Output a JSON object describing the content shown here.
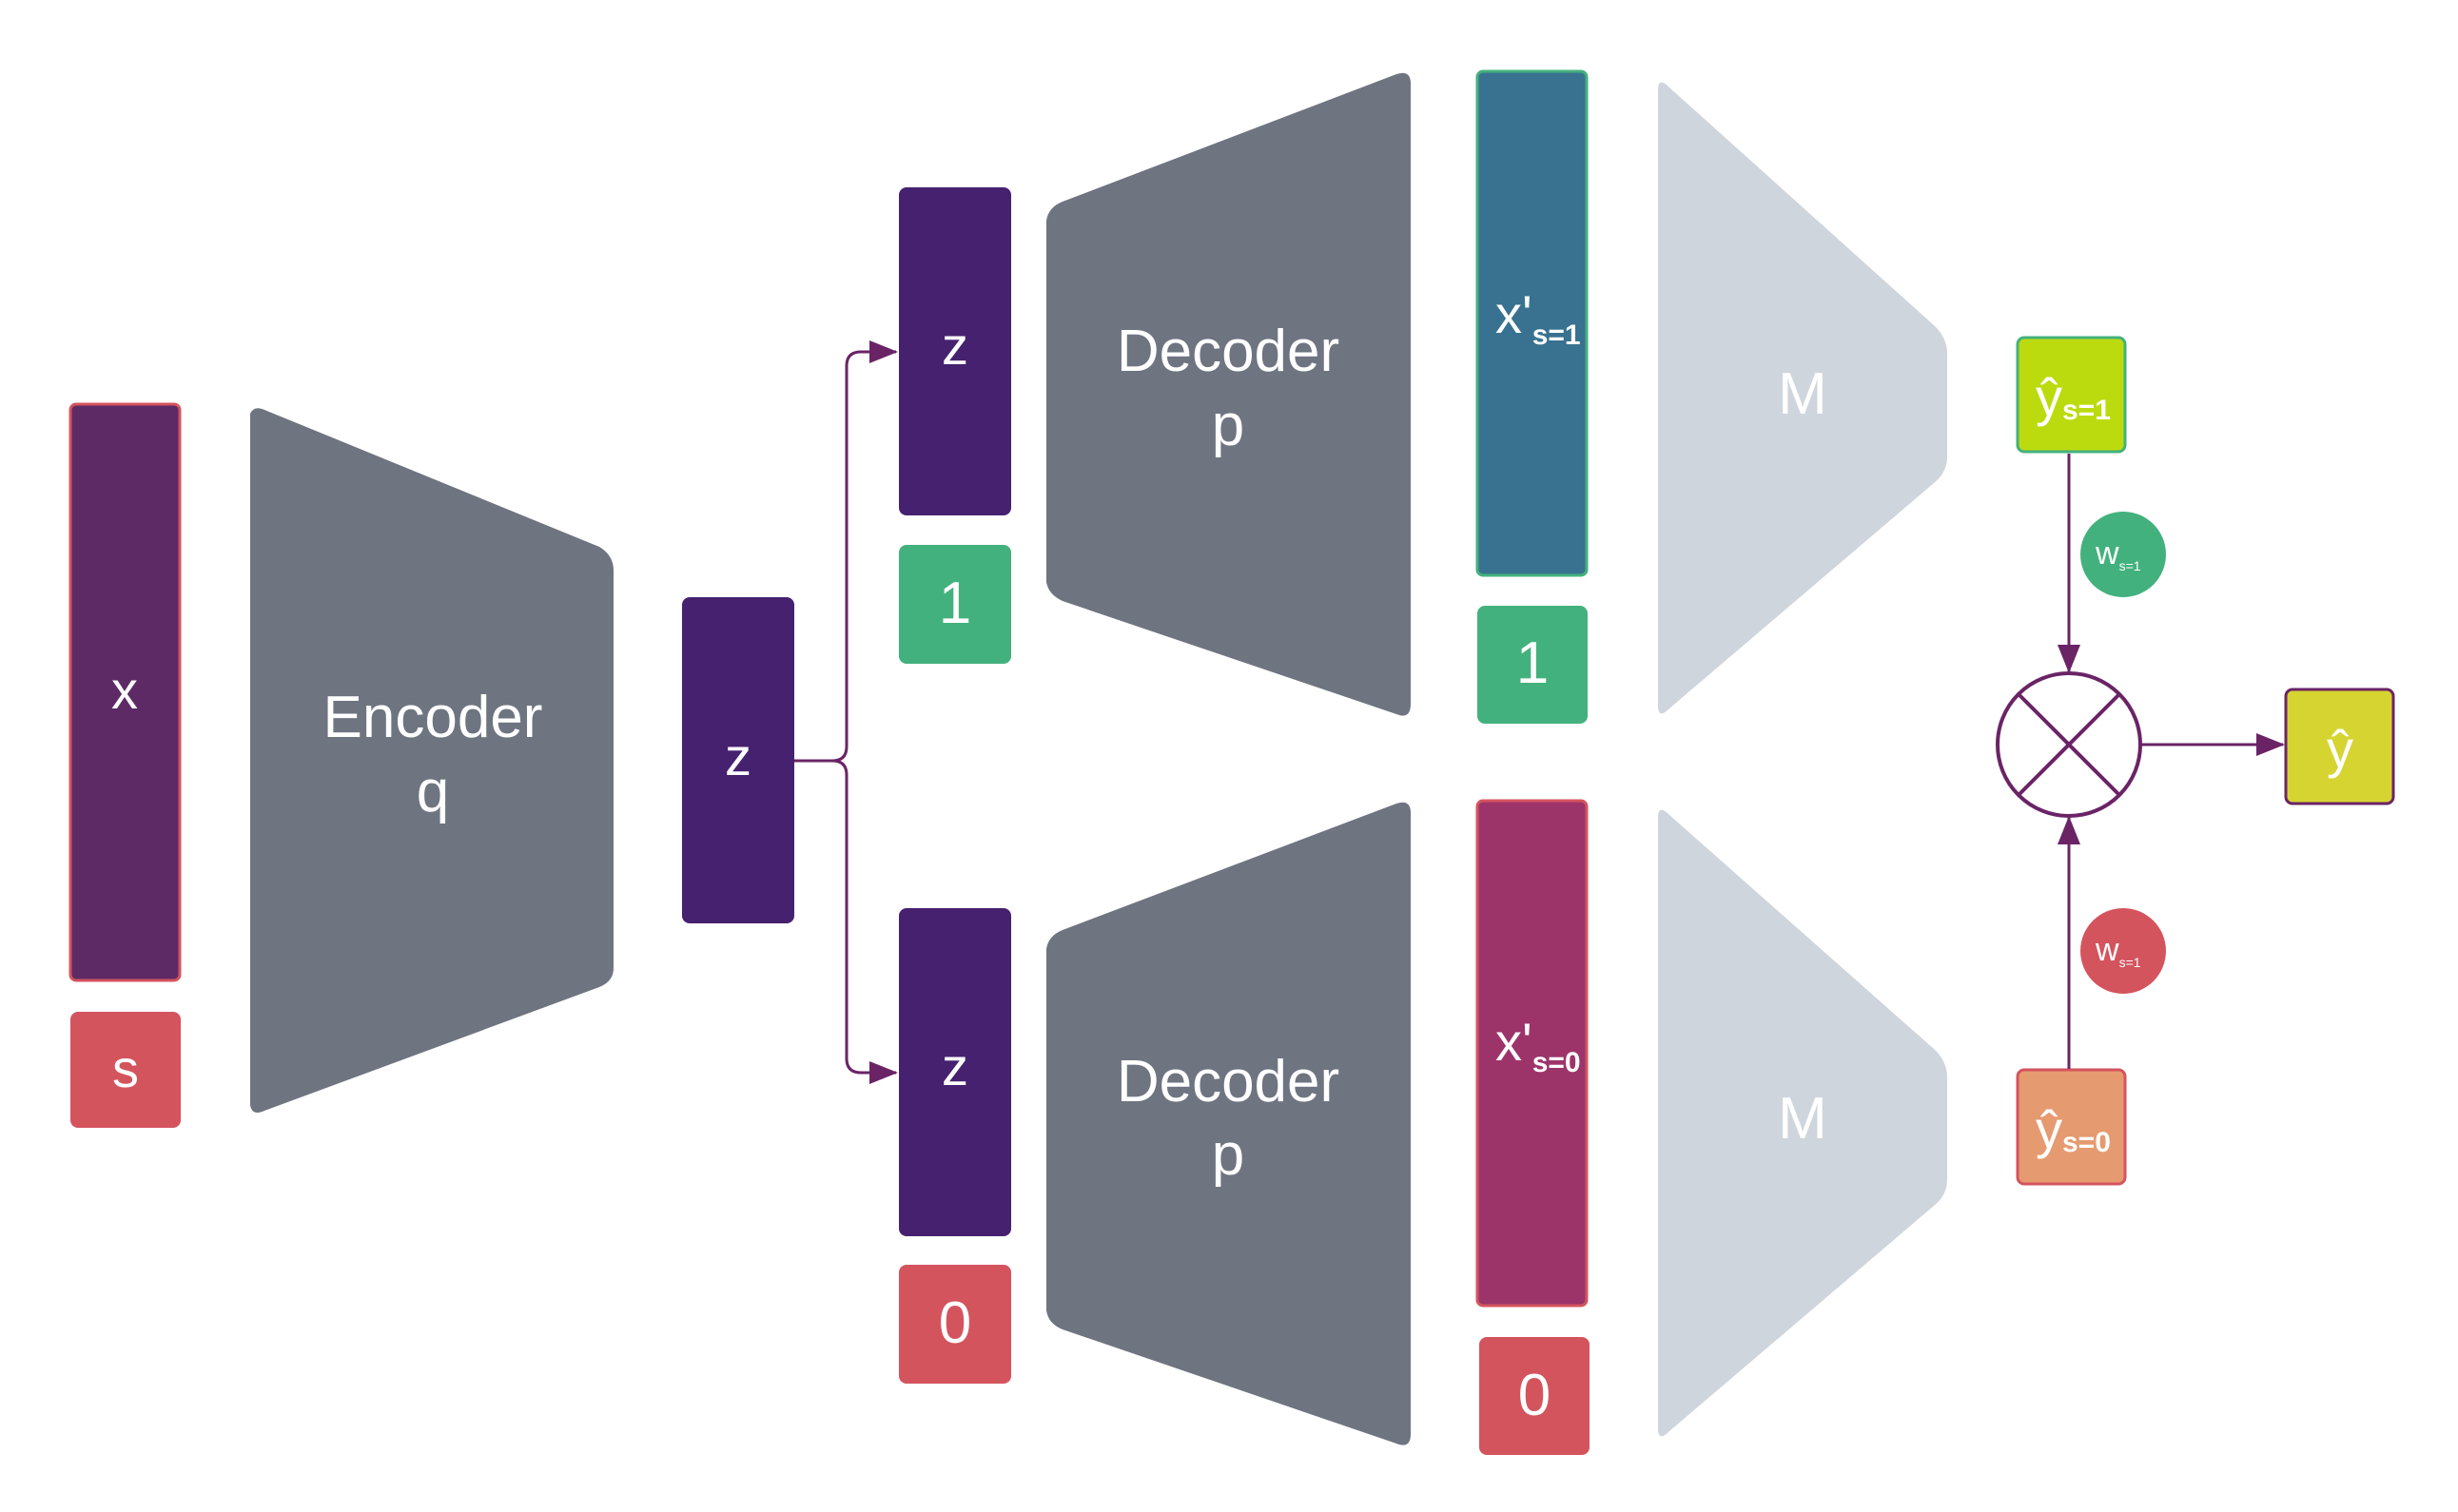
{
  "colors": {
    "purple": "#5d2a66",
    "indigo": "#45216f",
    "gray": "#6e7480",
    "light_gray": "#cfd5dc",
    "green": "#43b17d",
    "red": "#d4545e",
    "teal": "#387290",
    "magenta": "#9c346a",
    "lime": "#bcdb0e",
    "salmon": "#e69a70",
    "olive": "#d6d431",
    "arrow": "#6a2466"
  },
  "input": {
    "x_label": "x",
    "s_label": "s"
  },
  "encoder": {
    "line1": "Encoder",
    "line2": "q"
  },
  "latent": {
    "z_label": "z"
  },
  "branch_top": {
    "z_label": "z",
    "flag": "1",
    "decoder_line1": "Decoder",
    "decoder_line2": "p",
    "xprime_base": "x'",
    "xprime_sub": "s=1",
    "xprime_flag": "1",
    "model": "M",
    "yhat_base": "ŷ",
    "yhat_sub": "s=1",
    "weight_base": "w",
    "weight_sub": "s=1"
  },
  "branch_bottom": {
    "z_label": "z",
    "flag": "0",
    "decoder_line1": "Decoder",
    "decoder_line2": "p",
    "xprime_base": "x'",
    "xprime_sub": "s=0",
    "xprime_flag": "0",
    "model": "M",
    "yhat_base": "ŷ",
    "yhat_sub": "s=0",
    "weight_base": "w",
    "weight_sub": "s=1"
  },
  "output": {
    "y_label": "ŷ"
  }
}
